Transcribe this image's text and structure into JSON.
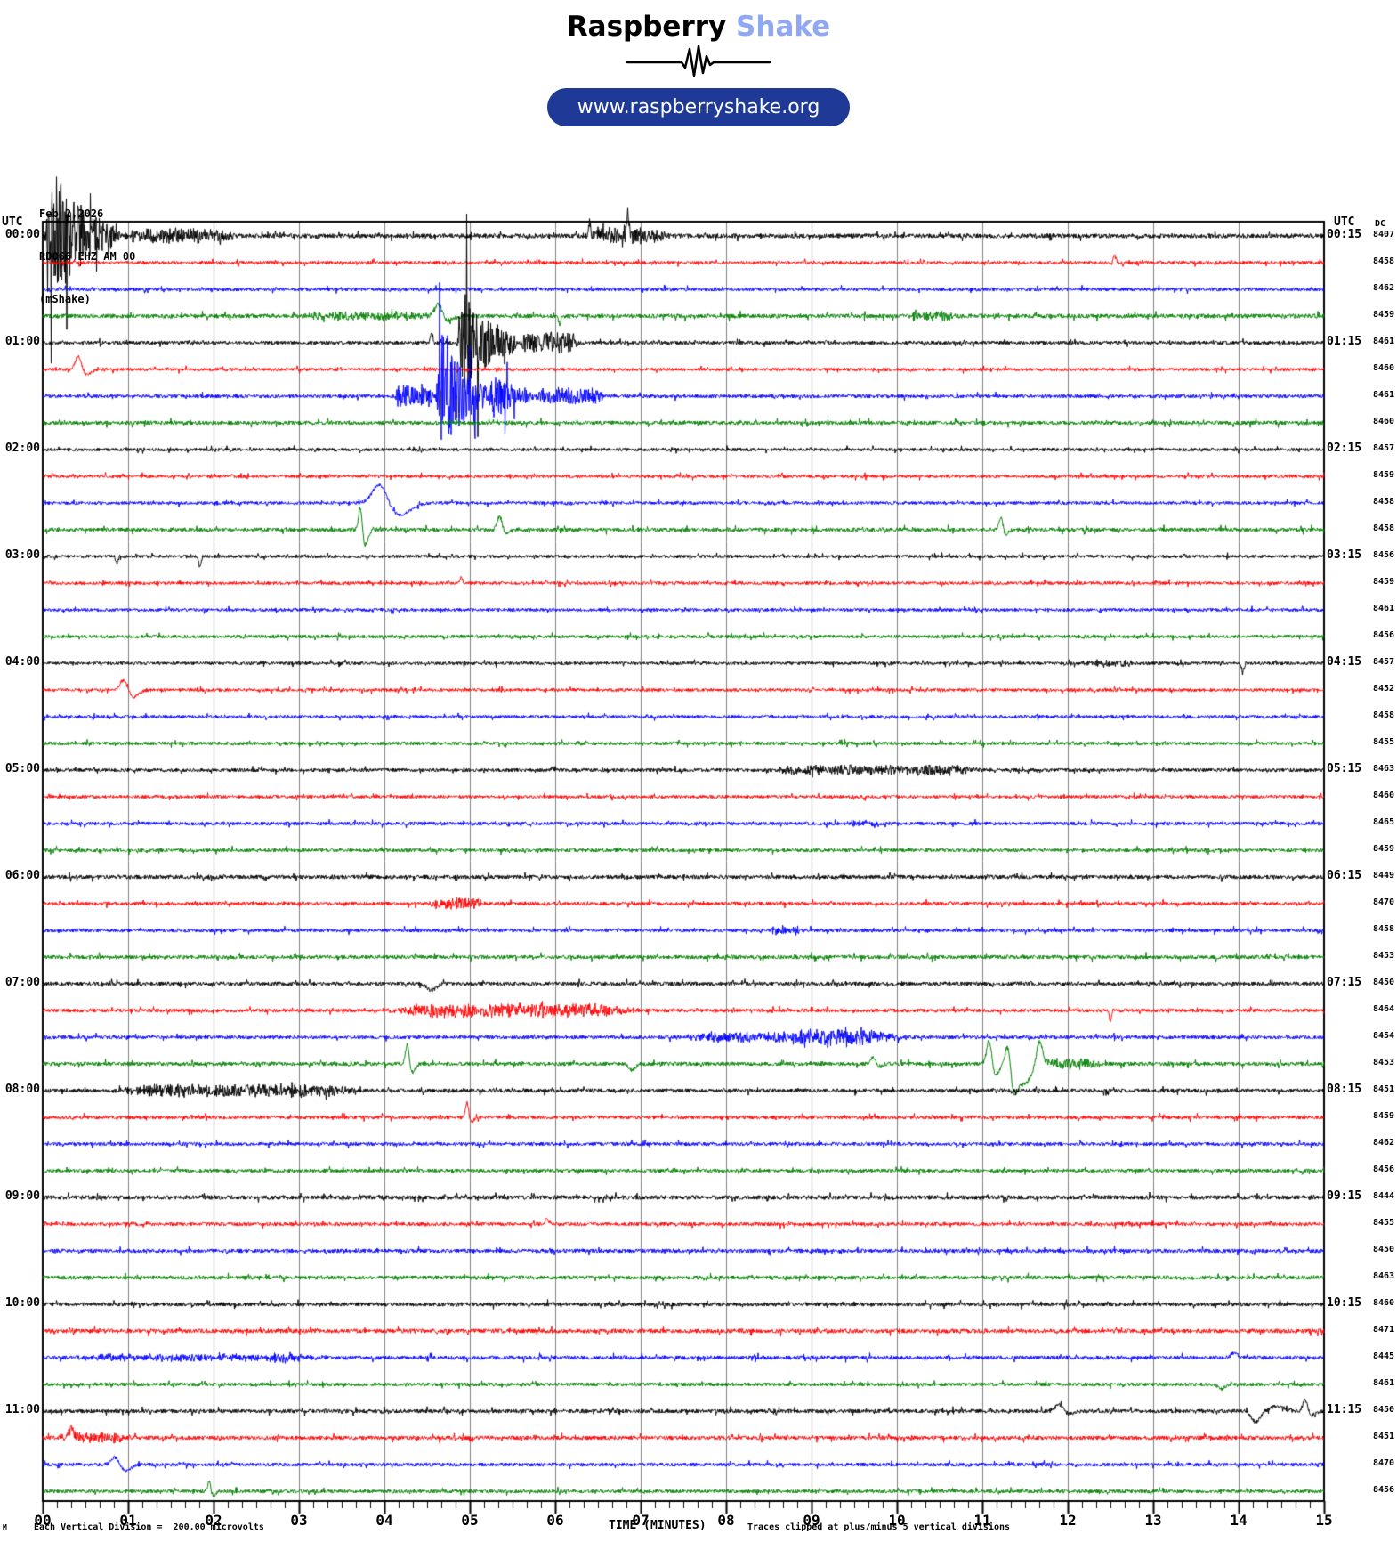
{
  "header": {
    "logo_black": "Raspberry",
    "logo_accent": "Shake",
    "url": "www.raspberryshake.org",
    "accent_color": "#90a8f4",
    "pill_color": "#1e3a96"
  },
  "station": {
    "date": "Feb 2,2026",
    "id": "RD066 EHZ AM 00",
    "network": "(mShake)"
  },
  "axis": {
    "left_header": "UTC",
    "right_header": "UTC",
    "dc_header": "DC",
    "title": "TIME (MINUTES)",
    "footnote_left": "Each Vertical Division =  200.00 microvolts",
    "footnote_right": "Traces clipped at plus/minus 5 vertical divisions",
    "footnote_mark": "M"
  },
  "chart_data": {
    "type": "line",
    "subtype": "helicorder-seismogram",
    "x_range_minutes": [
      0,
      15
    ],
    "minutes_per_line": 15,
    "vertical_division_microvolts": 200.0,
    "clip_divisions": 5,
    "grid": "vertical-minute-lines",
    "minute_labels": [
      "00",
      "01",
      "02",
      "03",
      "04",
      "05",
      "06",
      "07",
      "08",
      "09",
      "10",
      "11",
      "12",
      "13",
      "14",
      "15"
    ],
    "hours_left": [
      "00:00",
      "01:00",
      "02:00",
      "03:00",
      "04:00",
      "05:00",
      "06:00",
      "07:00",
      "08:00",
      "09:00",
      "10:00",
      "11:00"
    ],
    "hours_right": [
      "00:15",
      "01:15",
      "02:15",
      "03:15",
      "04:15",
      "05:15",
      "06:15",
      "07:15",
      "08:15",
      "09:15",
      "10:15",
      "11:15"
    ],
    "trace_colors": [
      "#000000",
      "#ff0000",
      "#0000ff",
      "#008000"
    ],
    "grid_color": "#808080",
    "rows": [
      {
        "dc": 8407,
        "noise": 2.5,
        "events": [
          {
            "type": "burst",
            "t0": 0.02,
            "t1": 0.9,
            "amp": 75
          },
          {
            "type": "fuzz",
            "t0": 0.9,
            "t1": 2.3,
            "amp": 7
          },
          {
            "type": "fuzz",
            "t0": 6.3,
            "t1": 7.35,
            "amp": 8
          },
          {
            "type": "spike",
            "t": 6.85,
            "amp": 32
          },
          {
            "type": "spike",
            "t": 6.4,
            "amp": 14
          }
        ]
      },
      {
        "dc": 8458,
        "noise": 1.8,
        "events": [
          {
            "type": "spike",
            "t": 12.55,
            "amp": 11
          }
        ]
      },
      {
        "dc": 8462,
        "noise": 2.0,
        "events": []
      },
      {
        "dc": 8459,
        "noise": 2.4,
        "events": [
          {
            "type": "fuzz",
            "t0": 3.0,
            "t1": 4.5,
            "amp": 3.5
          },
          {
            "type": "lp",
            "t": 4.63,
            "amp": 14,
            "w": 0.06,
            "u": 5
          },
          {
            "type": "spike",
            "t": 6.05,
            "amp": -10
          },
          {
            "type": "fuzz",
            "t0": 10.1,
            "t1": 10.7,
            "amp": 4.5
          }
        ]
      },
      {
        "dc": 8461,
        "noise": 2.0,
        "events": [
          {
            "type": "spike",
            "t": 4.55,
            "amp": 13
          },
          {
            "type": "burst",
            "t0": 4.85,
            "t1": 5.55,
            "amp": 65
          },
          {
            "type": "fuzz",
            "t0": 5.55,
            "t1": 6.3,
            "amp": 11
          }
        ]
      },
      {
        "dc": 8460,
        "noise": 1.8,
        "events": [
          {
            "type": "lp",
            "t": 0.42,
            "amp": 17,
            "w": 0.05,
            "u": 6
          }
        ]
      },
      {
        "dc": 8461,
        "noise": 2.0,
        "events": [
          {
            "type": "fuzz",
            "t0": 4.1,
            "t1": 4.6,
            "amp": 13
          },
          {
            "type": "burst",
            "t0": 4.6,
            "t1": 5.2,
            "amp": 75
          },
          {
            "type": "burst",
            "t0": 5.2,
            "t1": 5.75,
            "amp": 30
          },
          {
            "type": "fuzz",
            "t0": 5.75,
            "t1": 6.6,
            "amp": 9
          }
        ]
      },
      {
        "dc": 8460,
        "noise": 2.2,
        "events": []
      },
      {
        "dc": 8457,
        "noise": 1.8,
        "events": []
      },
      {
        "dc": 8459,
        "noise": 1.8,
        "events": []
      },
      {
        "dc": 8458,
        "noise": 1.8,
        "events": [
          {
            "type": "lp",
            "t": 3.95,
            "amp": 24,
            "w": 0.12,
            "u": 14
          }
        ]
      },
      {
        "dc": 8458,
        "noise": 2.2,
        "events": [
          {
            "type": "lp",
            "t": 3.72,
            "amp": 27,
            "w": 0.03,
            "u": 18
          },
          {
            "type": "lp",
            "t": 5.35,
            "amp": 16,
            "w": 0.04,
            "u": 4
          },
          {
            "type": "lp",
            "t": 11.22,
            "amp": 14,
            "w": 0.03,
            "u": 5
          }
        ]
      },
      {
        "dc": 8456,
        "noise": 1.8,
        "events": [
          {
            "type": "spike",
            "t": 0.87,
            "amp": -9
          },
          {
            "type": "spike",
            "t": 1.84,
            "amp": -14
          }
        ]
      },
      {
        "dc": 8459,
        "noise": 1.8,
        "events": [
          {
            "type": "spike",
            "t": 4.9,
            "amp": 8
          }
        ]
      },
      {
        "dc": 8461,
        "noise": 1.8,
        "events": []
      },
      {
        "dc": 8456,
        "noise": 1.9,
        "events": []
      },
      {
        "dc": 8457,
        "noise": 1.8,
        "events": [
          {
            "type": "fuzz",
            "t0": 12.2,
            "t1": 12.8,
            "amp": 3
          },
          {
            "type": "spike",
            "t": 14.05,
            "amp": -10
          }
        ]
      },
      {
        "dc": 8452,
        "noise": 1.8,
        "events": [
          {
            "type": "lp",
            "t": 0.95,
            "amp": 13,
            "w": 0.06,
            "u": 8
          }
        ]
      },
      {
        "dc": 8458,
        "noise": 1.8,
        "events": []
      },
      {
        "dc": 8455,
        "noise": 1.9,
        "events": []
      },
      {
        "dc": 8463,
        "noise": 2.0,
        "events": [
          {
            "type": "fuzz",
            "t0": 8.45,
            "t1": 11.05,
            "amp": 5
          }
        ]
      },
      {
        "dc": 8460,
        "noise": 1.8,
        "events": []
      },
      {
        "dc": 8465,
        "noise": 2.0,
        "events": [
          {
            "type": "fuzz",
            "t0": 9.4,
            "t1": 9.8,
            "amp": 3.5
          }
        ]
      },
      {
        "dc": 8459,
        "noise": 2.0,
        "events": []
      },
      {
        "dc": 8449,
        "noise": 2.2,
        "events": []
      },
      {
        "dc": 8470,
        "noise": 2.0,
        "events": [
          {
            "type": "fuzz",
            "t0": 4.5,
            "t1": 5.2,
            "amp": 6
          }
        ]
      },
      {
        "dc": 8458,
        "noise": 2.0,
        "events": [
          {
            "type": "fuzz",
            "t0": 8.5,
            "t1": 8.9,
            "amp": 4
          }
        ]
      },
      {
        "dc": 8453,
        "noise": 2.2,
        "events": []
      },
      {
        "dc": 8450,
        "noise": 2.2,
        "events": [
          {
            "type": "lp",
            "t": 4.55,
            "amp": -7,
            "w": 0.08,
            "u": 0
          }
        ]
      },
      {
        "dc": 8464,
        "noise": 2.0,
        "events": [
          {
            "type": "fuzz",
            "t0": 4.0,
            "t1": 7.0,
            "amp": 7
          },
          {
            "type": "spike",
            "t": 12.5,
            "amp": -12
          }
        ]
      },
      {
        "dc": 8454,
        "noise": 2.0,
        "events": [
          {
            "type": "fuzz",
            "t0": 7.4,
            "t1": 10.2,
            "amp": 5
          },
          {
            "type": "fuzz",
            "t0": 8.7,
            "t1": 9.8,
            "amp": 7
          }
        ]
      },
      {
        "dc": 8453,
        "noise": 2.2,
        "events": [
          {
            "type": "lp",
            "t": 4.27,
            "amp": 25,
            "w": 0.03,
            "u": 10
          },
          {
            "type": "lp",
            "t": 6.9,
            "amp": -7,
            "w": 0.05,
            "u": 0
          },
          {
            "type": "lp",
            "t": 9.72,
            "amp": 9,
            "w": 0.04,
            "u": 3
          },
          {
            "type": "lp",
            "t": 11.08,
            "amp": 30,
            "w": 0.04,
            "u": 12
          },
          {
            "type": "lp",
            "t": 11.3,
            "amp": 26,
            "w": 0.04,
            "u": 30
          },
          {
            "type": "lp",
            "t": 11.5,
            "amp": -22,
            "w": 0.1,
            "u": 0
          },
          {
            "type": "lp",
            "t": 11.67,
            "amp": 26,
            "w": 0.05,
            "u": 0
          },
          {
            "type": "fuzz",
            "t0": 11.7,
            "t1": 12.4,
            "amp": 5
          }
        ]
      },
      {
        "dc": 8451,
        "noise": 2.2,
        "events": [
          {
            "type": "fuzz",
            "t0": 0.8,
            "t1": 3.75,
            "amp": 6
          }
        ]
      },
      {
        "dc": 8459,
        "noise": 2.0,
        "events": [
          {
            "type": "lp",
            "t": 4.97,
            "amp": 18,
            "w": 0.025,
            "u": 6
          }
        ]
      },
      {
        "dc": 8462,
        "noise": 2.0,
        "events": []
      },
      {
        "dc": 8456,
        "noise": 2.0,
        "events": []
      },
      {
        "dc": 8444,
        "noise": 2.4,
        "events": []
      },
      {
        "dc": 8455,
        "noise": 2.0,
        "events": [
          {
            "type": "spike",
            "t": 5.9,
            "amp": 8
          }
        ]
      },
      {
        "dc": 8450,
        "noise": 2.2,
        "events": []
      },
      {
        "dc": 8463,
        "noise": 2.2,
        "events": []
      },
      {
        "dc": 8460,
        "noise": 2.2,
        "events": []
      },
      {
        "dc": 8471,
        "noise": 2.4,
        "events": []
      },
      {
        "dc": 8445,
        "noise": 2.2,
        "events": [
          {
            "type": "fuzz",
            "t0": 0.3,
            "t1": 3.4,
            "amp": 3
          },
          {
            "type": "lp",
            "t": 13.95,
            "amp": 6,
            "w": 0.05,
            "u": 0
          }
        ]
      },
      {
        "dc": 8461,
        "noise": 2.0,
        "events": [
          {
            "type": "lp",
            "t": 13.8,
            "amp": -5,
            "w": 0.05,
            "u": 0
          }
        ]
      },
      {
        "dc": 8450,
        "noise": 2.2,
        "events": [
          {
            "type": "lp",
            "t": 11.9,
            "amp": 8,
            "w": 0.06,
            "u": 3
          },
          {
            "type": "lp",
            "t": 14.2,
            "amp": -12,
            "w": 0.07,
            "u": 0
          },
          {
            "type": "lp",
            "t": 14.45,
            "amp": 6,
            "w": 0.1,
            "u": 0
          },
          {
            "type": "lp",
            "t": 14.78,
            "amp": 14,
            "w": 0.04,
            "u": 5
          }
        ]
      },
      {
        "dc": 8451,
        "noise": 2.2,
        "events": [
          {
            "type": "fuzz",
            "t0": 0.15,
            "t1": 1.0,
            "amp": 5
          },
          {
            "type": "lp",
            "t": 0.33,
            "amp": 9,
            "w": 0.05,
            "u": 0
          }
        ]
      },
      {
        "dc": 8470,
        "noise": 2.0,
        "events": [
          {
            "type": "lp",
            "t": 0.85,
            "amp": 10,
            "w": 0.06,
            "u": 7
          }
        ]
      },
      {
        "dc": 8456,
        "noise": 2.0,
        "events": [
          {
            "type": "lp",
            "t": 1.95,
            "amp": 12,
            "w": 0.025,
            "u": 5
          }
        ]
      }
    ]
  }
}
